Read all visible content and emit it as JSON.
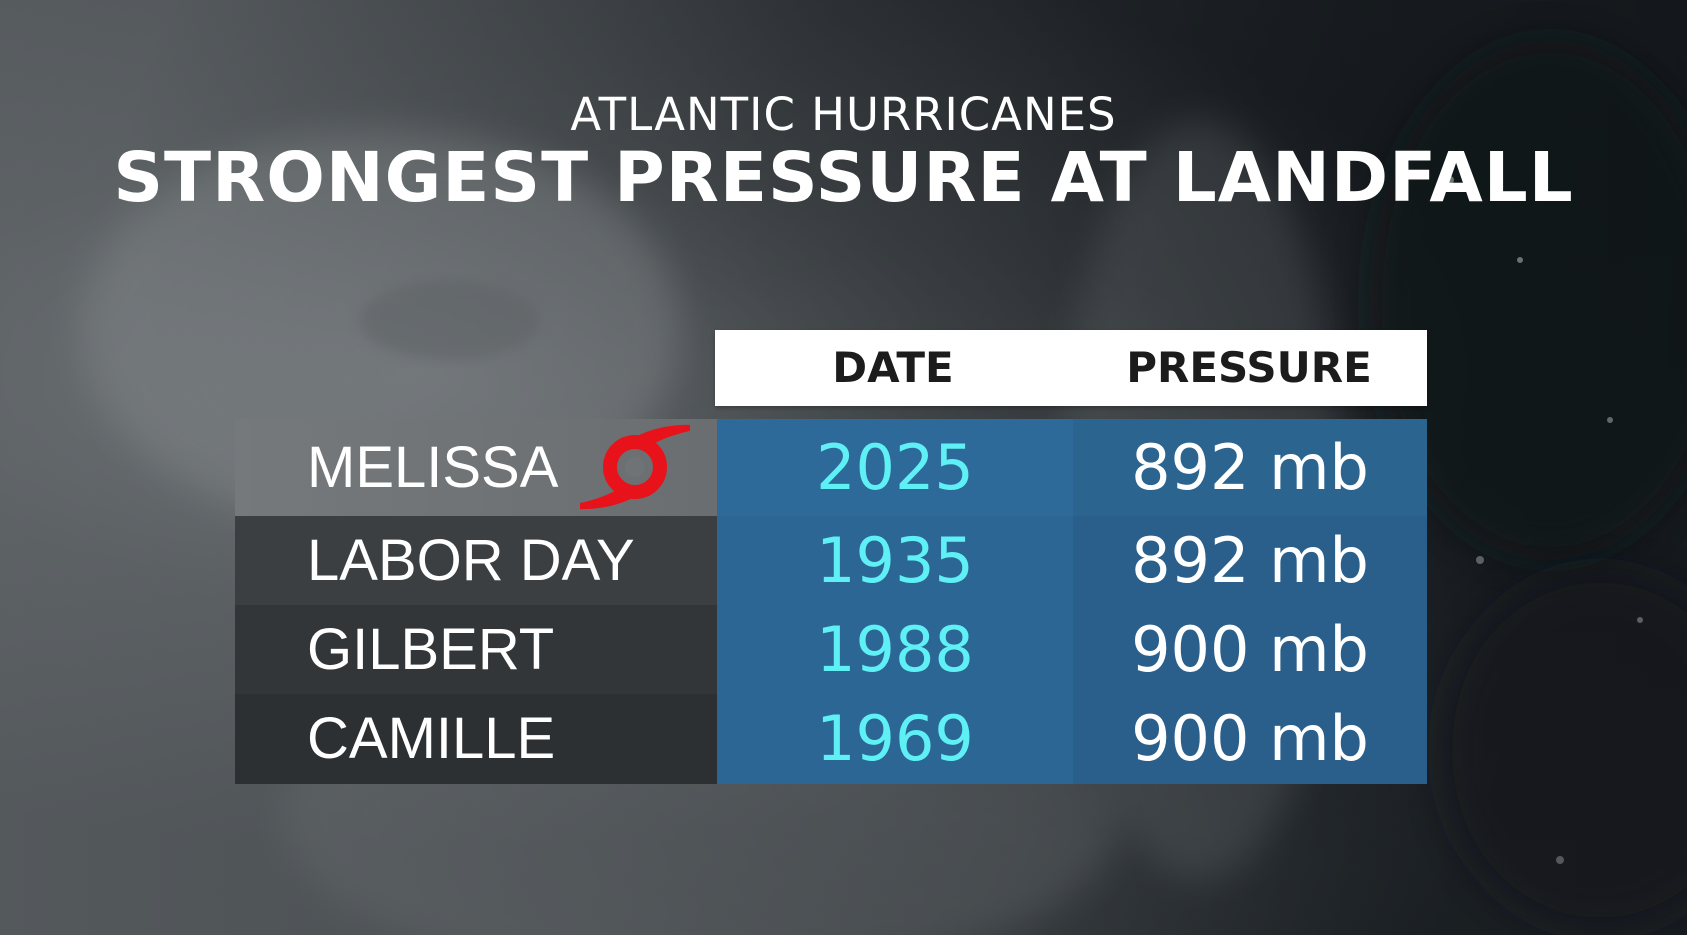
{
  "header": {
    "subtitle": "ATLANTIC HURRICANES",
    "title": "STRONGEST PRESSURE AT LANDFALL"
  },
  "table": {
    "columns": [
      "DATE",
      "PRESSURE"
    ],
    "rows": [
      {
        "name": "MELISSA",
        "date": "2025",
        "pressure": "892 mb",
        "icon": "hurricane-icon"
      },
      {
        "name": "LABOR DAY",
        "date": "1935",
        "pressure": "892 mb"
      },
      {
        "name": "GILBERT",
        "date": "1988",
        "pressure": "900 mb"
      },
      {
        "name": "CAMILLE",
        "date": "1969",
        "pressure": "900 mb"
      }
    ]
  },
  "colors": {
    "date_text": "#5ef0f5",
    "hurricane_icon": "#e8121b",
    "value_panel": "#2c6694"
  }
}
